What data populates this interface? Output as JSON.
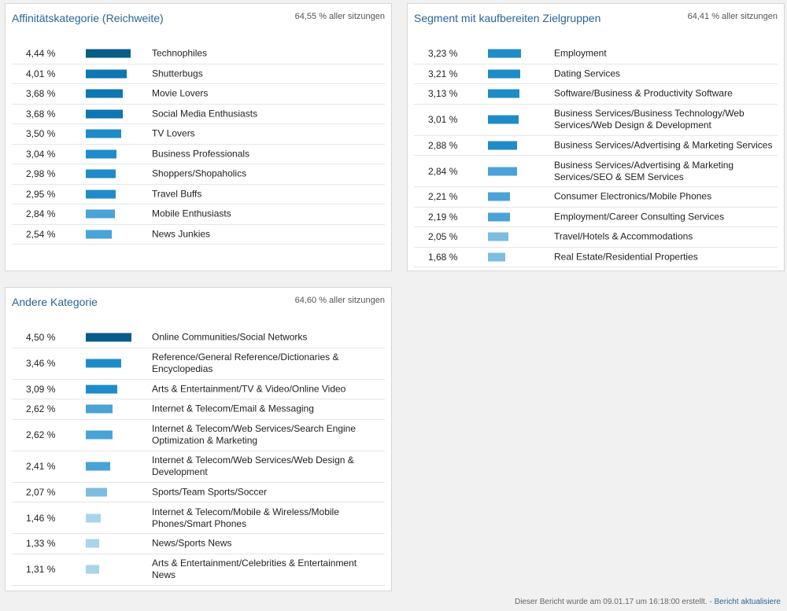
{
  "colors": {
    "accent_title": "#2a6496",
    "bar_scale": [
      "#a9d4ea",
      "#7cbde0",
      "#4aa3d6",
      "#1f8cc8",
      "#0e76b0",
      "#0a5c88"
    ]
  },
  "panels": [
    {
      "title": "Affinitätskategorie (Reichweite)",
      "subtitle": "64,55 % aller sitzungen",
      "rows": [
        {
          "pct": "4,44 %",
          "value": 4.44,
          "label": "Technophiles"
        },
        {
          "pct": "4,01 %",
          "value": 4.01,
          "label": "Shutterbugs"
        },
        {
          "pct": "3,68 %",
          "value": 3.68,
          "label": "Movie Lovers"
        },
        {
          "pct": "3,68 %",
          "value": 3.68,
          "label": "Social Media Enthusiasts"
        },
        {
          "pct": "3,50 %",
          "value": 3.5,
          "label": "TV Lovers"
        },
        {
          "pct": "3,04 %",
          "value": 3.04,
          "label": "Business Professionals"
        },
        {
          "pct": "2,98 %",
          "value": 2.98,
          "label": "Shoppers/Shopaholics"
        },
        {
          "pct": "2,95 %",
          "value": 2.95,
          "label": "Travel Buffs"
        },
        {
          "pct": "2,84 %",
          "value": 2.84,
          "label": "Mobile Enthusiasts"
        },
        {
          "pct": "2,54 %",
          "value": 2.54,
          "label": "News Junkies"
        }
      ]
    },
    {
      "title": "Segment mit kaufbereiten Zielgruppen",
      "subtitle": "64,41 % aller sitzungen",
      "rows": [
        {
          "pct": "3,23 %",
          "value": 3.23,
          "label": "Employment"
        },
        {
          "pct": "3,21 %",
          "value": 3.21,
          "label": "Dating Services"
        },
        {
          "pct": "3,13 %",
          "value": 3.13,
          "label": "Software/Business & Productivity Software"
        },
        {
          "pct": "3,01 %",
          "value": 3.01,
          "label": "Business Services/Business Technology/Web\nServices/Web Design & Development"
        },
        {
          "pct": "2,88 %",
          "value": 2.88,
          "label": "Business Services/Advertising & Marketing Services"
        },
        {
          "pct": "2,84 %",
          "value": 2.84,
          "label": "Business Services/Advertising & Marketing\nServices/SEO & SEM Services"
        },
        {
          "pct": "2,21 %",
          "value": 2.21,
          "label": "Consumer Electronics/Mobile Phones"
        },
        {
          "pct": "2,19 %",
          "value": 2.19,
          "label": "Employment/Career Consulting Services"
        },
        {
          "pct": "2,05 %",
          "value": 2.05,
          "label": "Travel/Hotels & Accommodations"
        },
        {
          "pct": "1,68 %",
          "value": 1.68,
          "label": "Real Estate/Residential Properties"
        }
      ]
    },
    {
      "title": "Andere Kategorie",
      "subtitle": "64,60 % aller sitzungen",
      "rows": [
        {
          "pct": "4,50 %",
          "value": 4.5,
          "label": "Online Communities/Social Networks"
        },
        {
          "pct": "3,46 %",
          "value": 3.46,
          "label": "Reference/General Reference/Dictionaries &\nEncyclopedias"
        },
        {
          "pct": "3,09 %",
          "value": 3.09,
          "label": "Arts & Entertainment/TV & Video/Online Video"
        },
        {
          "pct": "2,62 %",
          "value": 2.62,
          "label": "Internet & Telecom/Email & Messaging"
        },
        {
          "pct": "2,62 %",
          "value": 2.62,
          "label": "Internet & Telecom/Web Services/Search Engine\nOptimization & Marketing"
        },
        {
          "pct": "2,41 %",
          "value": 2.41,
          "label": "Internet & Telecom/Web Services/Web Design &\nDevelopment"
        },
        {
          "pct": "2,07 %",
          "value": 2.07,
          "label": "Sports/Team Sports/Soccer"
        },
        {
          "pct": "1,46 %",
          "value": 1.46,
          "label": "Internet & Telecom/Mobile & Wireless/Mobile\nPhones/Smart Phones"
        },
        {
          "pct": "1,33 %",
          "value": 1.33,
          "label": "News/Sports News"
        },
        {
          "pct": "1,31 %",
          "value": 1.31,
          "label": "Arts & Entertainment/Celebrities & Entertainment\nNews"
        }
      ]
    }
  ],
  "footer": {
    "text": "Dieser Bericht wurde am 09.01.17 um 16:18:00 erstellt. - ",
    "link": "Bericht aktualisiere"
  }
}
